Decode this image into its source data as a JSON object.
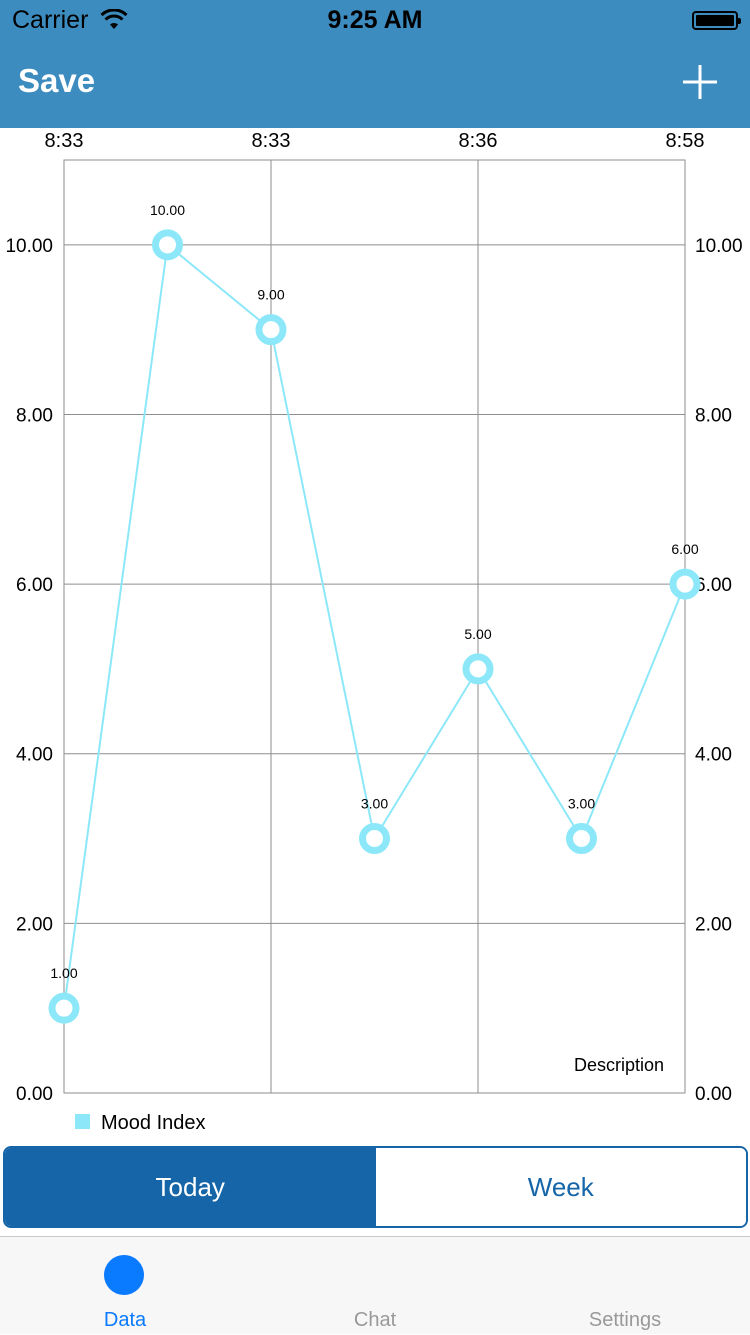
{
  "status_bar": {
    "carrier": "Carrier",
    "time": "9:25 AM"
  },
  "nav": {
    "save_label": "Save",
    "add_icon": "plus-icon"
  },
  "colors": {
    "header": "#3d8cbf",
    "line": "#8ce8f9",
    "accent": "#1565a8",
    "tab_active": "#0a7aff"
  },
  "chart_data": {
    "type": "line",
    "x": [
      "8:33",
      "",
      "8:33",
      "",
      "8:36",
      "",
      "8:58"
    ],
    "x_tick_labels": [
      "8:33",
      "8:33",
      "8:36",
      "8:58"
    ],
    "series": [
      {
        "name": "Mood Index",
        "values": [
          1,
          10,
          9,
          3,
          5,
          3,
          6
        ]
      }
    ],
    "value_labels": [
      "1.00",
      "10.00",
      "9.00",
      "3.00",
      "5.00",
      "3.00",
      "6.00"
    ],
    "y_tick_labels": [
      "0.00",
      "2.00",
      "4.00",
      "6.00",
      "8.00",
      "10.00"
    ],
    "ylim": [
      0,
      11
    ],
    "description": "Description",
    "grid": true,
    "legend": "bottom-left"
  },
  "segmented": {
    "today": "Today",
    "week": "Week"
  },
  "tabs": [
    {
      "label": "Data",
      "icon": "circle-icon"
    },
    {
      "label": "Chat",
      "icon": "chat-icon"
    },
    {
      "label": "Settings",
      "icon": "settings-icon"
    }
  ]
}
